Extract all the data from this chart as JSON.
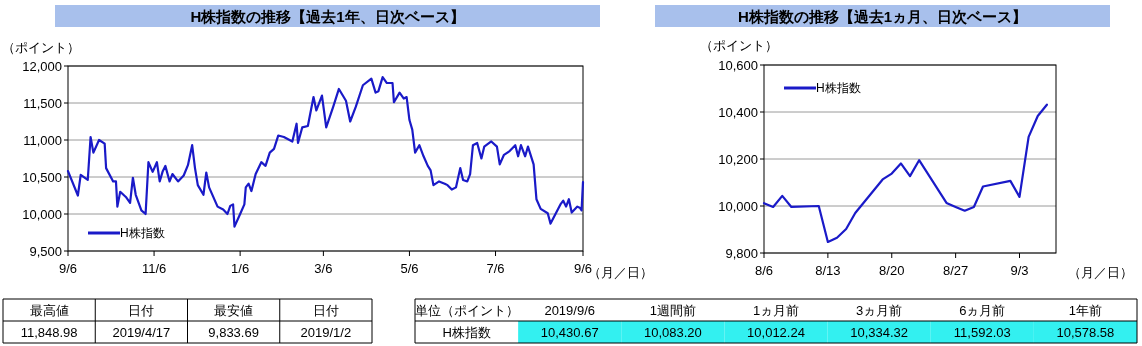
{
  "chart_data": [
    {
      "type": "line",
      "title": "H株指数の推移【過去1年、日次ベース】",
      "ylabel": "（ポイント）",
      "xlabel": "（月／日）",
      "x": [
        "2018-09-06",
        "2018-09-13",
        "2018-09-15",
        "2018-09-20",
        "2018-09-22",
        "2018-09-24",
        "2018-09-28",
        "2018-10-02",
        "2018-10-03",
        "2018-10-08",
        "2018-10-10",
        "2018-10-11",
        "2018-10-13",
        "2018-10-17",
        "2018-10-20",
        "2018-10-22",
        "2018-10-24",
        "2018-10-28",
        "2018-10-31",
        "2018-11-02",
        "2018-11-05",
        "2018-11-08",
        "2018-11-10",
        "2018-11-12",
        "2018-11-14",
        "2018-11-17",
        "2018-11-19",
        "2018-11-23",
        "2018-11-27",
        "2018-11-30",
        "2018-12-03",
        "2018-12-05",
        "2018-12-07",
        "2018-12-11",
        "2018-12-13",
        "2018-12-15",
        "2018-12-21",
        "2018-12-25",
        "2018-12-28",
        "2018-12-30",
        "2019-01-01",
        "2019-01-02",
        "2019-01-06",
        "2019-01-09",
        "2019-01-10",
        "2019-01-12",
        "2019-01-14",
        "2019-01-17",
        "2019-01-21",
        "2019-01-24",
        "2019-01-27",
        "2019-01-30",
        "2019-02-02",
        "2019-02-06",
        "2019-02-12",
        "2019-02-15",
        "2019-02-16",
        "2019-02-19",
        "2019-02-23",
        "2019-02-27",
        "2019-03-01",
        "2019-03-05",
        "2019-03-08",
        "2019-03-13",
        "2019-03-17",
        "2019-03-22",
        "2019-03-25",
        "2019-03-29",
        "2019-04-03",
        "2019-04-09",
        "2019-04-12",
        "2019-04-14",
        "2019-04-17",
        "2019-04-20",
        "2019-04-24",
        "2019-04-25",
        "2019-04-29",
        "2019-05-02",
        "2019-05-04",
        "2019-05-06",
        "2019-05-08",
        "2019-05-10",
        "2019-05-13",
        "2019-05-16",
        "2019-05-19",
        "2019-05-21",
        "2019-05-23",
        "2019-05-27",
        "2019-05-31",
        "2019-06-02",
        "2019-06-05",
        "2019-06-08",
        "2019-06-11",
        "2019-06-13",
        "2019-06-16",
        "2019-06-18",
        "2019-06-20",
        "2019-06-23",
        "2019-06-26",
        "2019-06-28",
        "2019-07-03",
        "2019-07-07",
        "2019-07-09",
        "2019-07-12",
        "2019-07-16",
        "2019-07-20",
        "2019-07-22",
        "2019-07-24",
        "2019-07-27",
        "2019-07-29",
        "2019-08-02",
        "2019-08-04",
        "2019-08-07",
        "2019-08-12",
        "2019-08-14",
        "2019-08-21",
        "2019-08-23",
        "2019-08-25",
        "2019-08-27",
        "2019-08-29",
        "2019-09-02",
        "2019-09-04",
        "2019-09-05",
        "2019-09-06"
      ],
      "series": [
        {
          "name": "H株指数",
          "color": "#1a1ac8",
          "values": [
            10580,
            10250,
            10530,
            10460,
            11040,
            10830,
            11000,
            10950,
            10620,
            10440,
            10440,
            10100,
            10300,
            10230,
            10150,
            10490,
            10260,
            10050,
            10000,
            10700,
            10570,
            10700,
            10440,
            10570,
            10650,
            10440,
            10540,
            10440,
            10520,
            10660,
            10930,
            10620,
            10390,
            10260,
            10560,
            10360,
            10100,
            10060,
            10000,
            10110,
            10130,
            9830,
            10000,
            10130,
            10360,
            10410,
            10310,
            10540,
            10700,
            10650,
            10830,
            10880,
            11060,
            11040,
            10980,
            11220,
            10960,
            11170,
            11190,
            11580,
            11400,
            11600,
            11170,
            11450,
            11690,
            11530,
            11250,
            11450,
            11740,
            11830,
            11640,
            11660,
            11850,
            11770,
            11770,
            11510,
            11640,
            11560,
            11580,
            11270,
            11140,
            10830,
            10930,
            10780,
            10650,
            10590,
            10390,
            10440,
            10410,
            10390,
            10330,
            10360,
            10620,
            10460,
            10440,
            10540,
            10930,
            10960,
            10750,
            10910,
            10980,
            10910,
            10670,
            10800,
            10850,
            10930,
            10780,
            10930,
            10780,
            10910,
            10670,
            10200,
            10070,
            10010,
            9870,
            10130,
            10180,
            10100,
            10200,
            10020,
            10100,
            10080,
            10050,
            10430
          ]
        }
      ],
      "xlim": [
        "2018-09-06",
        "2019-09-06"
      ],
      "xticks": [
        {
          "value": "2018-09-06",
          "label": "9/6"
        },
        {
          "value": "2018-11-06",
          "label": "11/6"
        },
        {
          "value": "2019-01-06",
          "label": "1/6"
        },
        {
          "value": "2019-03-06",
          "label": "3/6"
        },
        {
          "value": "2019-05-06",
          "label": "5/6"
        },
        {
          "value": "2019-07-06",
          "label": "7/6"
        },
        {
          "value": "2019-09-06",
          "label": "9/6"
        }
      ],
      "ylim": [
        9500,
        12000
      ],
      "yticks": [
        {
          "value": 9500,
          "label": "9,500"
        },
        {
          "value": 10000,
          "label": "10,000"
        },
        {
          "value": 10500,
          "label": "10,500"
        },
        {
          "value": 11000,
          "label": "11,000"
        },
        {
          "value": 11500,
          "label": "11,500"
        },
        {
          "value": 12000,
          "label": "12,000"
        }
      ],
      "grid": "y",
      "legend": "bottom left"
    },
    {
      "type": "line",
      "title": "H株指数の推移【過去1ヵ月、日次ベース】",
      "ylabel": "（ポイント）",
      "xlabel": "（月／日）",
      "x": [
        "2019-08-06",
        "2019-08-07",
        "2019-08-08",
        "2019-08-09",
        "2019-08-12",
        "2019-08-13",
        "2019-08-14",
        "2019-08-15",
        "2019-08-16",
        "2019-08-19",
        "2019-08-20",
        "2019-08-21",
        "2019-08-22",
        "2019-08-23",
        "2019-08-26",
        "2019-08-27",
        "2019-08-28",
        "2019-08-29",
        "2019-08-30",
        "2019-09-02",
        "2019-09-03",
        "2019-09-04",
        "2019-09-05",
        "2019-09-06"
      ],
      "series": [
        {
          "name": "H株指数",
          "color": "#1a1ac8",
          "values": [
            10012,
            9996,
            10043,
            9996,
            10000,
            9847,
            9865,
            9902,
            9970,
            10113,
            10138,
            10181,
            10127,
            10195,
            10013,
            9996,
            9980,
            9996,
            10083,
            10107,
            10039,
            10294,
            10383,
            10431
          ]
        }
      ],
      "xlim": [
        "2019-08-06",
        "2019-09-07"
      ],
      "xticks": [
        {
          "value": "2019-08-06",
          "label": "8/6"
        },
        {
          "value": "2019-08-13",
          "label": "8/13"
        },
        {
          "value": "2019-08-20",
          "label": "8/20"
        },
        {
          "value": "2019-08-27",
          "label": "8/27"
        },
        {
          "value": "2019-09-03",
          "label": "9/3"
        }
      ],
      "ylim": [
        9800,
        10600
      ],
      "yticks": [
        {
          "value": 9800,
          "label": "9,800"
        },
        {
          "value": 10000,
          "label": "10,000"
        },
        {
          "value": 10200,
          "label": "10,200"
        },
        {
          "value": 10400,
          "label": "10,400"
        },
        {
          "value": 10600,
          "label": "10,600"
        }
      ],
      "grid": "y",
      "legend": "top left"
    },
    {
      "type": "other",
      "categories": [
        "最高値",
        "日付",
        "最安値",
        "日付"
      ],
      "cell_labels": [
        [
          "11,848.98",
          "2019/4/17",
          "9,833.69",
          "2019/1/2"
        ]
      ]
    },
    {
      "type": "other",
      "annotations": [
        "単位（ポイント）"
      ],
      "categories": [
        "2019/9/6",
        "1週間前",
        "1ヵ月前",
        "3ヵ月前",
        "6ヵ月前",
        "1年前"
      ],
      "y_categories": [
        "H株指数"
      ],
      "color": "#33f0f0",
      "cell_labels": [
        [
          "10,430.67",
          "10,083.20",
          "10,012.24",
          "10,334.32",
          "11,592.03",
          "10,578.58"
        ]
      ]
    }
  ]
}
